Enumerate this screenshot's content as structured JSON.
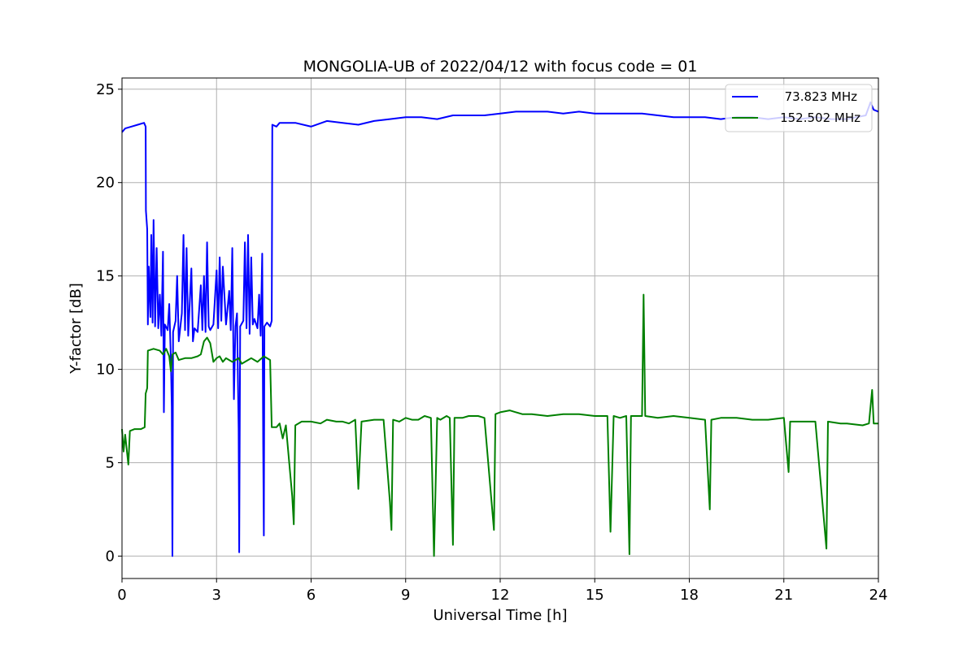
{
  "chart_data": {
    "type": "line",
    "title": "MONGOLIA-UB of 2022/04/12 with focus code = 01",
    "xlabel": "Universal Time [h]",
    "ylabel": "Y-factor [dB]",
    "xlim": [
      0,
      24
    ],
    "ylim": [
      -1.2,
      25.6
    ],
    "xticks": [
      0,
      3,
      6,
      9,
      12,
      15,
      18,
      21,
      24
    ],
    "yticks": [
      0,
      5,
      10,
      15,
      20,
      25
    ],
    "grid": true,
    "legend_position": "top-right",
    "series": [
      {
        "name": "73.823 MHz",
        "color": "#0000ff",
        "points": [
          [
            0.0,
            22.7
          ],
          [
            0.1,
            22.9
          ],
          [
            0.3,
            23.0
          ],
          [
            0.5,
            23.1
          ],
          [
            0.7,
            23.2
          ],
          [
            0.75,
            23.0
          ],
          [
            0.76,
            18.5
          ],
          [
            0.8,
            17.5
          ],
          [
            0.82,
            12.4
          ],
          [
            0.85,
            15.5
          ],
          [
            0.9,
            12.8
          ],
          [
            0.93,
            17.2
          ],
          [
            0.97,
            12.5
          ],
          [
            1.0,
            18.0
          ],
          [
            1.05,
            12.3
          ],
          [
            1.1,
            16.5
          ],
          [
            1.15,
            12.2
          ],
          [
            1.2,
            14.0
          ],
          [
            1.25,
            11.8
          ],
          [
            1.3,
            16.3
          ],
          [
            1.33,
            7.7
          ],
          [
            1.36,
            12.4
          ],
          [
            1.45,
            12.1
          ],
          [
            1.5,
            13.5
          ],
          [
            1.55,
            10.5
          ],
          [
            1.58,
            8.0
          ],
          [
            1.6,
            0.0
          ],
          [
            1.62,
            12.0
          ],
          [
            1.7,
            12.6
          ],
          [
            1.75,
            15.0
          ],
          [
            1.8,
            11.5
          ],
          [
            1.9,
            13.0
          ],
          [
            1.95,
            17.2
          ],
          [
            2.0,
            12.1
          ],
          [
            2.05,
            16.5
          ],
          [
            2.1,
            11.8
          ],
          [
            2.2,
            15.4
          ],
          [
            2.25,
            11.5
          ],
          [
            2.3,
            12.2
          ],
          [
            2.4,
            12.0
          ],
          [
            2.5,
            14.5
          ],
          [
            2.55,
            12.1
          ],
          [
            2.6,
            15.0
          ],
          [
            2.65,
            12.0
          ],
          [
            2.7,
            16.8
          ],
          [
            2.75,
            12.3
          ],
          [
            2.8,
            12.1
          ],
          [
            2.9,
            12.4
          ],
          [
            3.0,
            15.3
          ],
          [
            3.05,
            12.2
          ],
          [
            3.1,
            16.0
          ],
          [
            3.15,
            12.6
          ],
          [
            3.2,
            15.5
          ],
          [
            3.3,
            12.4
          ],
          [
            3.4,
            14.2
          ],
          [
            3.45,
            12.1
          ],
          [
            3.5,
            16.5
          ],
          [
            3.55,
            8.4
          ],
          [
            3.6,
            12.3
          ],
          [
            3.65,
            13.0
          ],
          [
            3.7,
            6.8
          ],
          [
            3.72,
            0.2
          ],
          [
            3.75,
            12.3
          ],
          [
            3.85,
            12.6
          ],
          [
            3.9,
            16.8
          ],
          [
            3.95,
            12.2
          ],
          [
            4.0,
            17.2
          ],
          [
            4.05,
            11.9
          ],
          [
            4.1,
            16.0
          ],
          [
            4.15,
            12.4
          ],
          [
            4.2,
            12.7
          ],
          [
            4.3,
            12.2
          ],
          [
            4.35,
            14.0
          ],
          [
            4.4,
            11.8
          ],
          [
            4.45,
            16.2
          ],
          [
            4.48,
            6.0
          ],
          [
            4.5,
            1.1
          ],
          [
            4.52,
            12.3
          ],
          [
            4.6,
            12.5
          ],
          [
            4.7,
            12.3
          ],
          [
            4.75,
            12.6
          ],
          [
            4.77,
            23.1
          ],
          [
            4.9,
            23.0
          ],
          [
            5.0,
            23.2
          ],
          [
            5.5,
            23.2
          ],
          [
            6.0,
            23.0
          ],
          [
            6.5,
            23.3
          ],
          [
            7.0,
            23.2
          ],
          [
            7.5,
            23.1
          ],
          [
            8.0,
            23.3
          ],
          [
            8.5,
            23.4
          ],
          [
            9.0,
            23.5
          ],
          [
            9.5,
            23.5
          ],
          [
            10.0,
            23.4
          ],
          [
            10.5,
            23.6
          ],
          [
            11.0,
            23.6
          ],
          [
            11.5,
            23.6
          ],
          [
            12.0,
            23.7
          ],
          [
            12.5,
            23.8
          ],
          [
            13.0,
            23.8
          ],
          [
            13.5,
            23.8
          ],
          [
            14.0,
            23.7
          ],
          [
            14.5,
            23.8
          ],
          [
            15.0,
            23.7
          ],
          [
            15.5,
            23.7
          ],
          [
            16.0,
            23.7
          ],
          [
            16.5,
            23.7
          ],
          [
            17.0,
            23.6
          ],
          [
            17.5,
            23.5
          ],
          [
            18.0,
            23.5
          ],
          [
            18.5,
            23.5
          ],
          [
            19.0,
            23.4
          ],
          [
            19.5,
            23.5
          ],
          [
            20.0,
            23.5
          ],
          [
            20.5,
            23.4
          ],
          [
            21.0,
            23.5
          ],
          [
            21.5,
            23.4
          ],
          [
            22.0,
            23.5
          ],
          [
            22.5,
            23.4
          ],
          [
            23.0,
            23.4
          ],
          [
            23.3,
            23.5
          ],
          [
            23.6,
            23.6
          ],
          [
            23.75,
            24.3
          ],
          [
            23.85,
            23.9
          ],
          [
            24.0,
            23.8
          ]
        ]
      },
      {
        "name": "152.502 MHz",
        "color": "#008000",
        "points": [
          [
            0.0,
            6.8
          ],
          [
            0.05,
            5.6
          ],
          [
            0.1,
            6.5
          ],
          [
            0.2,
            4.9
          ],
          [
            0.25,
            6.7
          ],
          [
            0.4,
            6.8
          ],
          [
            0.6,
            6.8
          ],
          [
            0.72,
            6.9
          ],
          [
            0.75,
            8.7
          ],
          [
            0.8,
            9.0
          ],
          [
            0.82,
            11.0
          ],
          [
            1.0,
            11.1
          ],
          [
            1.2,
            11.0
          ],
          [
            1.3,
            10.8
          ],
          [
            1.4,
            11.1
          ],
          [
            1.5,
            10.7
          ],
          [
            1.55,
            9.9
          ],
          [
            1.6,
            10.8
          ],
          [
            1.7,
            10.9
          ],
          [
            1.8,
            10.5
          ],
          [
            2.0,
            10.6
          ],
          [
            2.2,
            10.6
          ],
          [
            2.4,
            10.7
          ],
          [
            2.5,
            10.8
          ],
          [
            2.6,
            11.5
          ],
          [
            2.7,
            11.7
          ],
          [
            2.8,
            11.4
          ],
          [
            2.9,
            10.4
          ],
          [
            3.0,
            10.6
          ],
          [
            3.1,
            10.7
          ],
          [
            3.2,
            10.4
          ],
          [
            3.3,
            10.6
          ],
          [
            3.4,
            10.5
          ],
          [
            3.5,
            10.4
          ],
          [
            3.6,
            10.5
          ],
          [
            3.7,
            10.6
          ],
          [
            3.8,
            10.3
          ],
          [
            3.9,
            10.4
          ],
          [
            4.0,
            10.5
          ],
          [
            4.1,
            10.6
          ],
          [
            4.2,
            10.5
          ],
          [
            4.3,
            10.4
          ],
          [
            4.5,
            10.7
          ],
          [
            4.7,
            10.5
          ],
          [
            4.75,
            6.9
          ],
          [
            4.9,
            6.9
          ],
          [
            5.0,
            7.1
          ],
          [
            5.1,
            6.3
          ],
          [
            5.2,
            7.0
          ],
          [
            5.4,
            3.2
          ],
          [
            5.45,
            1.7
          ],
          [
            5.5,
            7.0
          ],
          [
            5.7,
            7.2
          ],
          [
            6.0,
            7.2
          ],
          [
            6.3,
            7.1
          ],
          [
            6.5,
            7.3
          ],
          [
            6.8,
            7.2
          ],
          [
            7.0,
            7.2
          ],
          [
            7.2,
            7.1
          ],
          [
            7.4,
            7.3
          ],
          [
            7.5,
            3.6
          ],
          [
            7.6,
            7.2
          ],
          [
            8.0,
            7.3
          ],
          [
            8.3,
            7.3
          ],
          [
            8.5,
            2.9
          ],
          [
            8.55,
            1.4
          ],
          [
            8.6,
            7.3
          ],
          [
            8.8,
            7.2
          ],
          [
            9.0,
            7.4
          ],
          [
            9.2,
            7.3
          ],
          [
            9.4,
            7.3
          ],
          [
            9.6,
            7.5
          ],
          [
            9.8,
            7.4
          ],
          [
            9.9,
            0.0
          ],
          [
            10.0,
            7.4
          ],
          [
            10.1,
            7.3
          ],
          [
            10.3,
            7.5
          ],
          [
            10.4,
            7.4
          ],
          [
            10.5,
            0.6
          ],
          [
            10.55,
            7.4
          ],
          [
            10.8,
            7.4
          ],
          [
            11.0,
            7.5
          ],
          [
            11.3,
            7.5
          ],
          [
            11.5,
            7.4
          ],
          [
            11.8,
            1.4
          ],
          [
            11.85,
            7.6
          ],
          [
            12.0,
            7.7
          ],
          [
            12.3,
            7.8
          ],
          [
            12.5,
            7.7
          ],
          [
            12.7,
            7.6
          ],
          [
            13.0,
            7.6
          ],
          [
            13.5,
            7.5
          ],
          [
            14.0,
            7.6
          ],
          [
            14.5,
            7.6
          ],
          [
            15.0,
            7.5
          ],
          [
            15.4,
            7.5
          ],
          [
            15.5,
            1.3
          ],
          [
            15.6,
            7.5
          ],
          [
            15.8,
            7.4
          ],
          [
            16.0,
            7.5
          ],
          [
            16.1,
            0.1
          ],
          [
            16.15,
            7.5
          ],
          [
            16.5,
            7.5
          ],
          [
            16.55,
            14.0
          ],
          [
            16.6,
            7.5
          ],
          [
            17.0,
            7.4
          ],
          [
            17.5,
            7.5
          ],
          [
            18.0,
            7.4
          ],
          [
            18.5,
            7.3
          ],
          [
            18.65,
            2.5
          ],
          [
            18.7,
            7.3
          ],
          [
            19.0,
            7.4
          ],
          [
            19.5,
            7.4
          ],
          [
            20.0,
            7.3
          ],
          [
            20.5,
            7.3
          ],
          [
            21.0,
            7.4
          ],
          [
            21.15,
            4.5
          ],
          [
            21.2,
            7.2
          ],
          [
            21.5,
            7.2
          ],
          [
            22.0,
            7.2
          ],
          [
            22.35,
            0.4
          ],
          [
            22.4,
            7.2
          ],
          [
            22.8,
            7.1
          ],
          [
            23.0,
            7.1
          ],
          [
            23.5,
            7.0
          ],
          [
            23.7,
            7.1
          ],
          [
            23.8,
            8.9
          ],
          [
            23.85,
            7.1
          ],
          [
            24.0,
            7.1
          ]
        ]
      }
    ]
  }
}
